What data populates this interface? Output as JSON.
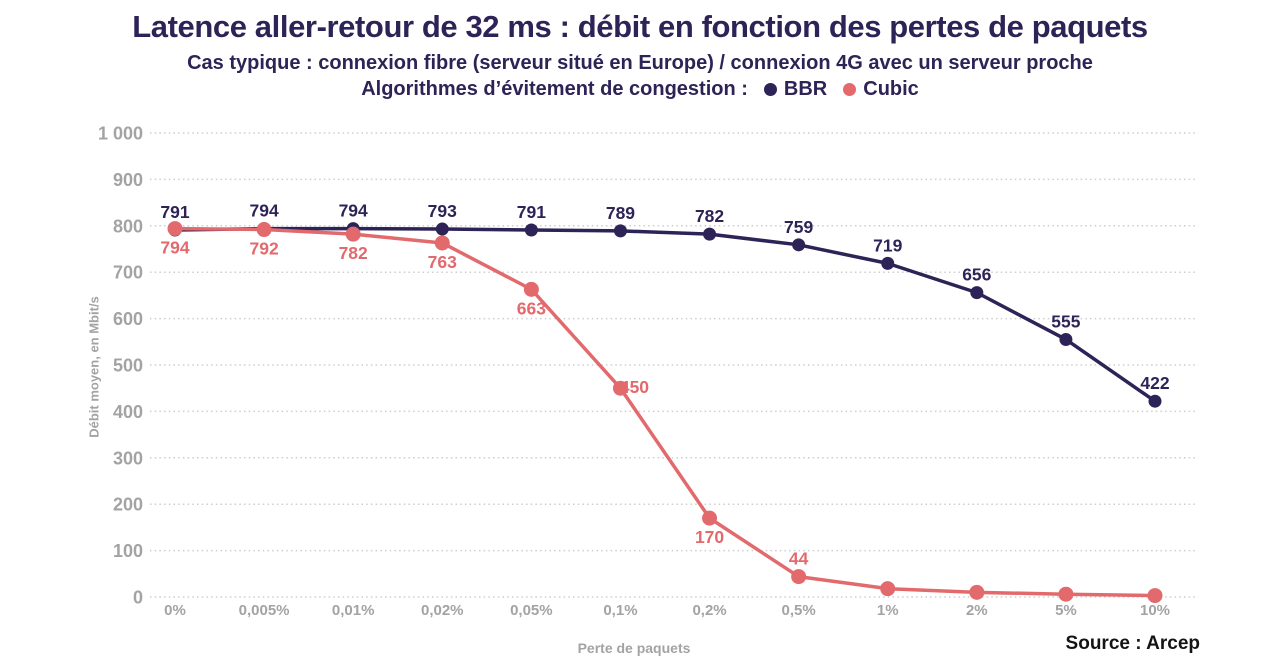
{
  "chart_data": {
    "type": "line",
    "title": "Latence aller-retour de 32 ms : débit en fonction des pertes de paquets",
    "subtitle": "Cas typique : connexion fibre (serveur situé en Europe) / connexion 4G avec un serveur proche",
    "legend_title": "Algorithmes d’évitement de congestion :",
    "legend_position": "top-inline",
    "categories": [
      "0%",
      "0,005%",
      "0,01%",
      "0,02%",
      "0,05%",
      "0,1%",
      "0,2%",
      "0,5%",
      "1%",
      "2%",
      "5%",
      "10%"
    ],
    "series": [
      {
        "name": "BBR",
        "color": "#2e2356",
        "values": [
          791,
          794,
          794,
          793,
          791,
          789,
          782,
          759,
          719,
          656,
          555,
          422
        ],
        "data_labels": [
          "791",
          "794",
          "794",
          "793",
          "791",
          "789",
          "782",
          "759",
          "719",
          "656",
          "555",
          "422"
        ],
        "label_positions": [
          "above",
          "above",
          "above",
          "above",
          "above",
          "above",
          "above",
          "above",
          "above",
          "above",
          "above",
          "above"
        ]
      },
      {
        "name": "Cubic",
        "color": "#e2696c",
        "values": [
          794,
          792,
          782,
          763,
          663,
          450,
          170,
          44,
          18,
          10,
          6,
          3
        ],
        "data_labels": [
          "794",
          "792",
          "782",
          "763",
          "663",
          "450",
          "170",
          "44",
          "",
          "",
          "",
          ""
        ],
        "label_positions": [
          "below",
          "below",
          "below",
          "below",
          "below",
          "right",
          "below",
          "above",
          "none",
          "none",
          "none",
          "none"
        ]
      }
    ],
    "xlabel": "Perte de paquets",
    "ylabel": "Débit moyen, en Mbit/s",
    "ylim": [
      0,
      1000
    ],
    "ytick_step": 100,
    "ytick_labels": [
      "0",
      "100",
      "200",
      "300",
      "400",
      "500",
      "600",
      "700",
      "800",
      "900",
      "1 000"
    ],
    "grid": "horizontal-dotted",
    "gridline_color": "#cdcdcd",
    "axis_text_color": "#a3a3a3"
  },
  "footer": {
    "source": "Source : Arcep"
  }
}
